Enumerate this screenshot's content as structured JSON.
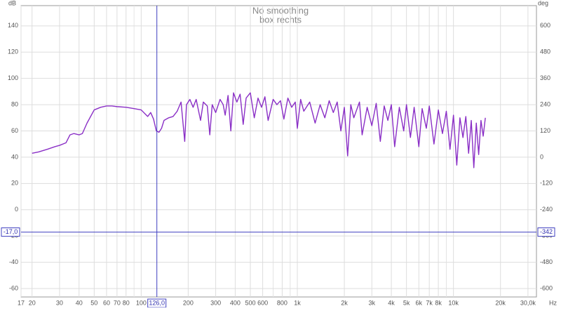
{
  "chart_data": {
    "type": "line",
    "title": "No smoothing",
    "subtitle": "box rechts",
    "y_unit": "dB",
    "y2_unit": "deg",
    "x_unit": "Hz",
    "log_x": true,
    "grid": true,
    "xlim": [
      17,
      34000
    ],
    "ylim": [
      -66.4,
      155.4
    ],
    "y2lim": [
      -638.4,
      692.4
    ],
    "xticks": [
      17,
      20,
      30,
      40,
      50,
      60,
      70,
      80,
      100,
      200,
      300,
      400,
      500,
      600,
      800,
      {
        "value": 1000,
        "label": "1k"
      },
      {
        "value": 2000,
        "label": "2k"
      },
      {
        "value": 3000,
        "label": "3k"
      },
      {
        "value": 4000,
        "label": "4k"
      },
      {
        "value": 5000,
        "label": "5k"
      },
      {
        "value": 6000,
        "label": "6k"
      },
      {
        "value": 7000,
        "label": "7k"
      },
      {
        "value": 8000,
        "label": "8k"
      },
      {
        "value": 10000,
        "label": "10k"
      },
      {
        "value": 20000,
        "label": "20k"
      },
      {
        "value": 30000,
        "label": "30,0k"
      }
    ],
    "xminor": [
      90,
      700,
      900,
      9000
    ],
    "yticks": [
      -60,
      -40,
      -20,
      0,
      20,
      40,
      60,
      80,
      100,
      120,
      140
    ],
    "y2ticks": [
      -600,
      -480,
      -360,
      -240,
      -120,
      0,
      120,
      240,
      360,
      480,
      600
    ],
    "cursor": {
      "x": 126,
      "x_label": "126,0",
      "y": -17,
      "y_label": "-17,0",
      "y2": -342,
      "y2_label": "-342"
    },
    "series": [
      {
        "name": "box rechts",
        "color": "#8a2fc6",
        "x": [
          20,
          22,
          25,
          28,
          30,
          33,
          35,
          37,
          40,
          42,
          45,
          50,
          55,
          60,
          65,
          70,
          80,
          90,
          100,
          110,
          115,
          120,
          125,
          130,
          135,
          140,
          150,
          160,
          170,
          180,
          190,
          195,
          205,
          215,
          225,
          240,
          250,
          265,
          275,
          285,
          300,
          320,
          335,
          345,
          360,
          375,
          390,
          410,
          430,
          450,
          470,
          500,
          530,
          560,
          590,
          620,
          650,
          700,
          740,
          780,
          820,
          870,
          920,
          970,
          1000,
          1050,
          1100,
          1200,
          1300,
          1400,
          1500,
          1600,
          1700,
          1800,
          1900,
          2000,
          2100,
          2200,
          2300,
          2500,
          2600,
          2800,
          3000,
          3200,
          3400,
          3600,
          3800,
          4000,
          4200,
          4500,
          4800,
          5000,
          5300,
          5600,
          6000,
          6300,
          6700,
          7000,
          7500,
          8000,
          8500,
          9000,
          9500,
          10000,
          10500,
          11000,
          11500,
          12000,
          12500,
          13000,
          13500,
          14000,
          14500,
          15000,
          15500,
          16000
        ],
        "values": [
          43,
          44,
          46,
          48,
          49,
          51,
          57,
          58,
          57,
          58,
          66,
          76,
          78,
          79,
          79,
          78.5,
          78,
          77,
          76,
          71,
          74,
          69,
          60,
          59,
          62,
          68,
          70,
          71,
          75,
          82,
          52,
          80,
          84,
          78,
          84,
          68,
          82,
          79,
          57,
          80,
          74,
          84,
          80,
          72,
          87,
          60,
          89,
          82,
          88,
          65,
          85,
          89,
          70,
          85,
          78,
          86,
          68,
          84,
          80,
          83,
          69,
          85,
          78,
          82,
          62,
          84,
          75,
          82,
          66,
          80,
          70,
          83,
          74,
          82,
          60,
          78,
          41,
          80,
          70,
          82,
          57,
          78,
          64,
          81,
          52,
          79,
          68,
          80,
          48,
          78,
          60,
          80,
          55,
          78,
          48,
          77,
          62,
          79,
          50,
          76,
          58,
          75,
          46,
          72,
          34,
          70,
          55,
          71,
          43,
          68,
          32,
          66,
          42,
          68,
          56,
          70
        ]
      }
    ]
  }
}
